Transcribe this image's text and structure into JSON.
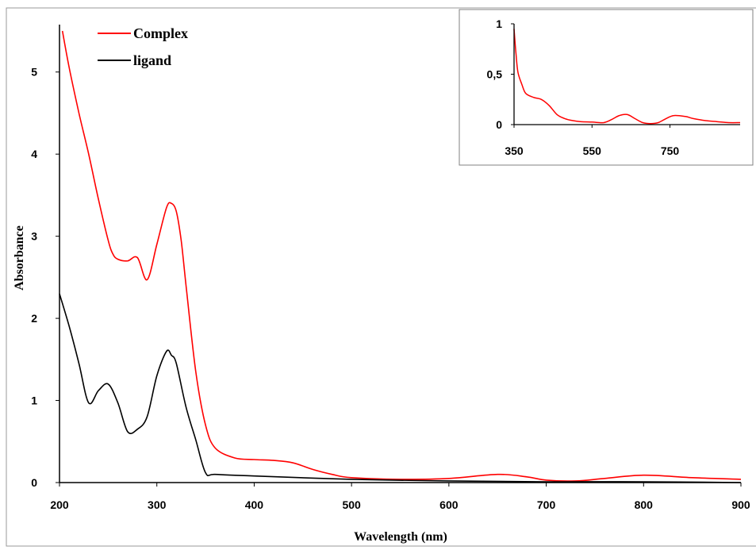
{
  "colors": {
    "complex": "#ff0000",
    "ligand": "#000000",
    "axis": "#000000",
    "frame": "#999999"
  },
  "chart_data": [
    {
      "type": "line",
      "title": "",
      "xlabel": "Wavelength (nm)",
      "ylabel": "Absorbance",
      "xlim": [
        200,
        900
      ],
      "ylim": [
        0,
        5.5
      ],
      "x_ticks": [
        "200",
        "300",
        "400",
        "500",
        "600",
        "700",
        "800",
        "900"
      ],
      "y_ticks": [
        "0",
        "1",
        "2",
        "3",
        "4",
        "5"
      ],
      "grid": false,
      "legend_position": "top-left",
      "series": [
        {
          "name": "Complex",
          "color": "#ff0000",
          "x": [
            203,
            210,
            220,
            230,
            240,
            250,
            255,
            260,
            270,
            280,
            290,
            300,
            310,
            315,
            320,
            325,
            330,
            340,
            350,
            360,
            380,
            400,
            420,
            440,
            460,
            480,
            500,
            550,
            600,
            650,
            680,
            700,
            730,
            760,
            800,
            850,
            900
          ],
          "y": [
            5.5,
            5.05,
            4.5,
            4.0,
            3.45,
            2.95,
            2.78,
            2.72,
            2.7,
            2.74,
            2.47,
            2.9,
            3.35,
            3.4,
            3.3,
            2.95,
            2.4,
            1.35,
            0.7,
            0.42,
            0.3,
            0.28,
            0.27,
            0.24,
            0.16,
            0.1,
            0.06,
            0.04,
            0.05,
            0.1,
            0.07,
            0.03,
            0.02,
            0.05,
            0.09,
            0.06,
            0.04
          ]
        },
        {
          "name": "ligand",
          "color": "#000000",
          "x": [
            200,
            210,
            220,
            230,
            240,
            250,
            260,
            270,
            280,
            290,
            300,
            310,
            315,
            320,
            330,
            340,
            350,
            360,
            400,
            500,
            600,
            700,
            800,
            900
          ],
          "y": [
            2.3,
            1.9,
            1.45,
            0.97,
            1.12,
            1.2,
            0.97,
            0.62,
            0.65,
            0.8,
            1.3,
            1.6,
            1.55,
            1.45,
            0.92,
            0.52,
            0.12,
            0.1,
            0.08,
            0.04,
            0.02,
            0.01,
            0.01,
            0.0
          ]
        }
      ]
    },
    {
      "type": "line",
      "title": "",
      "xlabel": "",
      "ylabel": "",
      "xlim": [
        350,
        930
      ],
      "ylim": [
        0,
        1
      ],
      "x_ticks": [
        "350",
        "550",
        "750"
      ],
      "y_ticks": [
        "0",
        "0,5",
        "1"
      ],
      "grid": false,
      "position": "top-right inset",
      "series": [
        {
          "name": "",
          "color": "#ff0000",
          "x": [
            350,
            355,
            360,
            370,
            380,
            400,
            420,
            440,
            460,
            480,
            500,
            520,
            550,
            580,
            600,
            620,
            640,
            660,
            680,
            700,
            720,
            740,
            760,
            790,
            810,
            840,
            870,
            900,
            930
          ],
          "y": [
            0.95,
            0.7,
            0.52,
            0.4,
            0.31,
            0.27,
            0.25,
            0.19,
            0.1,
            0.06,
            0.04,
            0.03,
            0.025,
            0.02,
            0.05,
            0.09,
            0.1,
            0.06,
            0.02,
            0.01,
            0.02,
            0.06,
            0.09,
            0.08,
            0.06,
            0.04,
            0.03,
            0.02,
            0.02
          ]
        }
      ]
    }
  ]
}
